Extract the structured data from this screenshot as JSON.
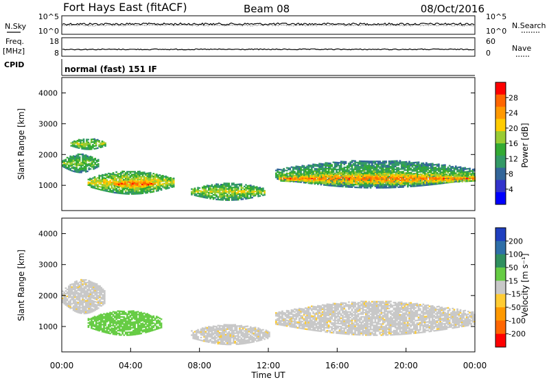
{
  "header": {
    "station": "Fort Hays East (fitACF)",
    "beam": "Beam 08",
    "date": "08/Oct/2016"
  },
  "params": {
    "nsky_label": "N.Sky",
    "nsky_ticks": [
      "10^5",
      "10^0"
    ],
    "nsearch_label": "N.Search",
    "nsearch_ticks": [
      "10^5",
      "10^0"
    ],
    "freq_label": "Freq.",
    "freq_unit": "[MHz]",
    "freq_ticks": [
      "18",
      "8"
    ],
    "nave_label": "Nave",
    "nave_ticks": [
      "60",
      "0"
    ],
    "cpid_label": "CPID",
    "cpid_text": "normal (fast) 151 IF"
  },
  "chart_data": [
    {
      "type": "heatmap",
      "panel": "power",
      "xlabel": "",
      "ylabel": "Slant Range [km]",
      "y_ticks": [
        "1000",
        "2000",
        "3000",
        "4000"
      ],
      "y_values": [
        1000,
        2000,
        3000,
        4000
      ],
      "ylim": [
        180,
        4500
      ],
      "xlim_hours": [
        0,
        24
      ],
      "colorbar_label": "Power [dB]",
      "colorbar_ticks": [
        "28",
        "24",
        "20",
        "16",
        "12",
        "8",
        "4"
      ],
      "colorbar_colors": [
        "#ff0000",
        "#ff6600",
        "#ff9900",
        "#ffcc00",
        "#99cc33",
        "#33aa33",
        "#339966",
        "#336699",
        "#3333cc",
        "#0000ff"
      ],
      "echo_regions": [
        {
          "t_start": 0.0,
          "t_end": 2.1,
          "range_min": 1400,
          "range_max": 2000,
          "power_db": 16
        },
        {
          "t_start": 0.5,
          "t_end": 2.5,
          "range_min": 2150,
          "range_max": 2500,
          "power_db": 18
        },
        {
          "t_start": 1.5,
          "t_end": 6.5,
          "range_min": 700,
          "range_max": 1450,
          "power_db": 20
        },
        {
          "t_start": 3.0,
          "t_end": 5.3,
          "range_min": 850,
          "range_max": 1200,
          "power_db": 28
        },
        {
          "t_start": 7.5,
          "t_end": 11.8,
          "range_min": 500,
          "range_max": 1050,
          "power_db": 18
        },
        {
          "t_start": 12.4,
          "t_end": 24.0,
          "range_min": 900,
          "range_max": 1800,
          "power_db": 14
        },
        {
          "t_start": 12.6,
          "t_end": 24.0,
          "range_min": 1000,
          "range_max": 1400,
          "power_db": 26
        }
      ]
    },
    {
      "type": "heatmap",
      "panel": "velocity",
      "xlabel": "Time UT",
      "ylabel": "Slant Range [km]",
      "x_ticks": [
        "00:00",
        "04:00",
        "08:00",
        "12:00",
        "16:00",
        "20:00",
        "00:00"
      ],
      "x_hours": [
        0,
        4,
        8,
        12,
        16,
        20,
        24
      ],
      "y_ticks": [
        "1000",
        "2000",
        "3000",
        "4000"
      ],
      "y_values": [
        1000,
        2000,
        3000,
        4000
      ],
      "ylim": [
        180,
        4500
      ],
      "xlim_hours": [
        0,
        24
      ],
      "colorbar_label": "Velocity [m s⁻¹]",
      "colorbar_ticks": [
        "200",
        "100",
        "50",
        "15",
        "-15",
        "-50",
        "-100",
        "-200"
      ],
      "colorbar_colors": [
        "#1f3fbf",
        "#2e6fa8",
        "#2f8f5f",
        "#66cc44",
        "#c8c8c8",
        "#ffcc33",
        "#ff9900",
        "#ff6600",
        "#ff0000"
      ],
      "echo_regions": [
        {
          "t_start": 0.0,
          "t_end": 2.5,
          "range_min": 1400,
          "range_max": 2500,
          "velocity": 0
        },
        {
          "t_start": 1.5,
          "t_end": 5.8,
          "range_min": 700,
          "range_max": 1500,
          "velocity": 40
        },
        {
          "t_start": 7.5,
          "t_end": 12.0,
          "range_min": 400,
          "range_max": 1050,
          "velocity": 0
        },
        {
          "t_start": 12.4,
          "t_end": 24.0,
          "range_min": 700,
          "range_max": 1800,
          "velocity": 0
        }
      ]
    }
  ]
}
